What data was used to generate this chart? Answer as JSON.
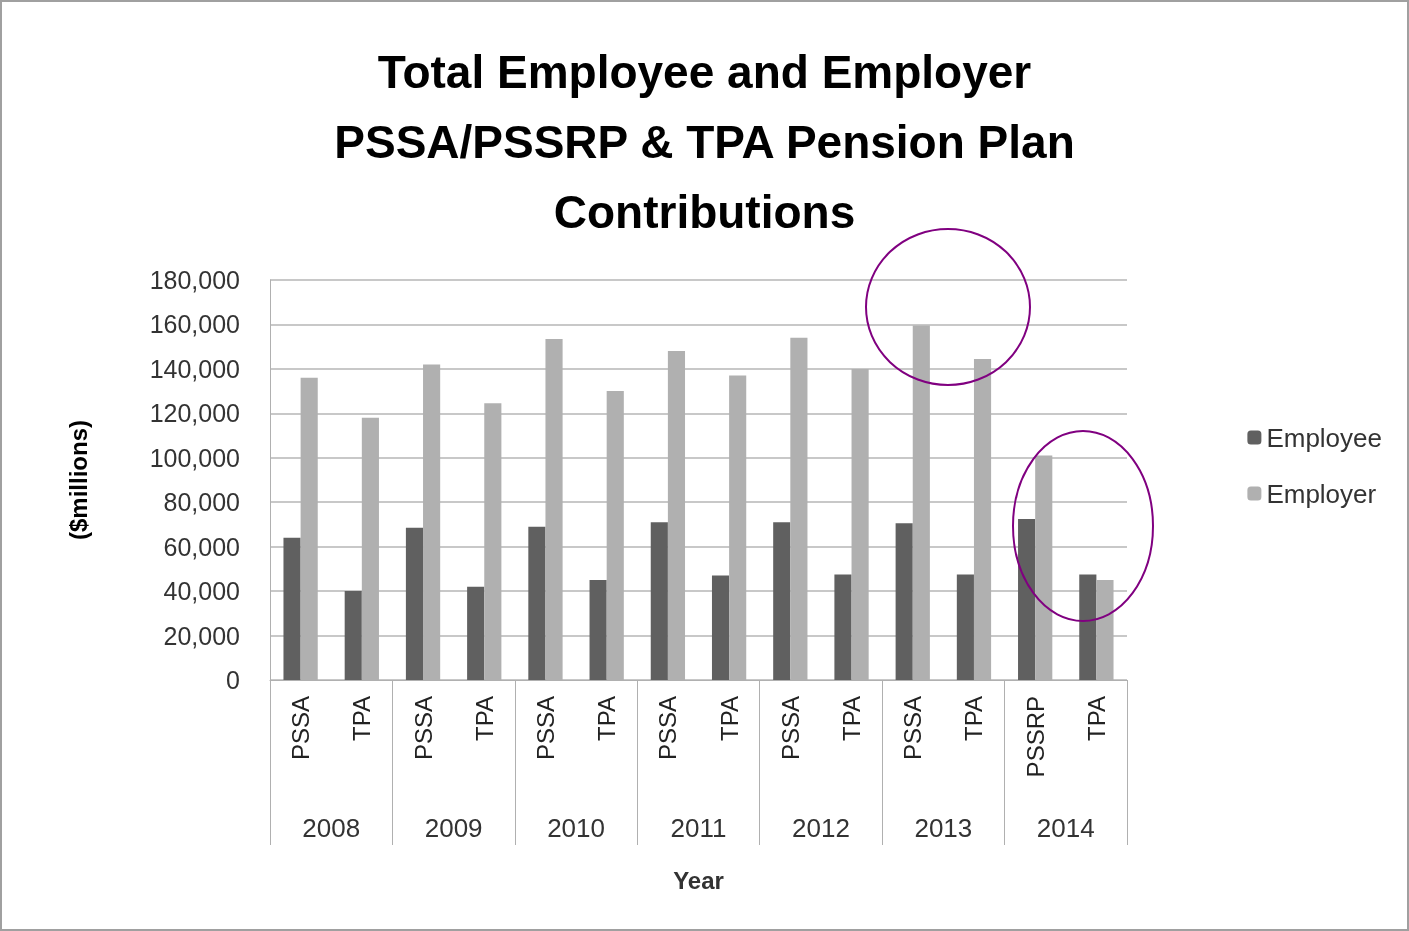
{
  "chart_data": {
    "type": "bar",
    "title": "Total Employee and Employer\nPSSA/PSSRP & TPA Pension Plan\nContributions",
    "categories": [
      "PSSA",
      "TPA",
      "PSSA",
      "TPA",
      "PSSA",
      "TPA",
      "PSSA",
      "TPA",
      "PSSA",
      "TPA",
      "PSSA",
      "TPA",
      "PSSRP",
      "TPA"
    ],
    "annotations": [
      "2008",
      "2009",
      "2010",
      "2011",
      "2012",
      "2013",
      "2014"
    ],
    "series": [
      {
        "name": "Employee",
        "color": "#606060",
        "values": [
          64000,
          40000,
          68500,
          42000,
          69000,
          45000,
          71000,
          47000,
          71000,
          47500,
          70500,
          47500,
          72500,
          47500
        ]
      },
      {
        "name": "Employer",
        "color": "#b0b0b0",
        "values": [
          136000,
          118000,
          142000,
          124500,
          153500,
          130000,
          148000,
          137000,
          154000,
          140000,
          159500,
          144500,
          101000,
          45000
        ]
      }
    ],
    "xlabel": "Year",
    "ylabel": "($millions)",
    "ylim": [
      0,
      180000
    ],
    "yticks": [
      0,
      {
        "value": 20000,
        "label": "20,000"
      },
      {
        "value": 40000,
        "label": "40,000"
      },
      {
        "value": 60000,
        "label": "60,000"
      },
      {
        "value": 80000,
        "label": "80,000"
      },
      {
        "value": 100000,
        "label": "100,000"
      },
      {
        "value": 120000,
        "label": "120,000"
      },
      {
        "value": 140000,
        "label": "140,000"
      },
      {
        "value": 160000,
        "label": "160,000"
      },
      {
        "value": 180000,
        "label": "180,000"
      }
    ],
    "grid": "y",
    "legend": "right"
  }
}
